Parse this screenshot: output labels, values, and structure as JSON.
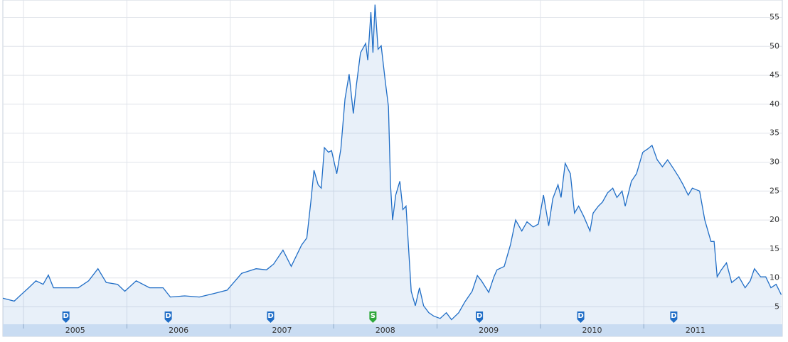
{
  "chart_data": {
    "type": "line",
    "x": [
      2004.8,
      2004.91,
      2004.97,
      2005.05,
      2005.12,
      2005.19,
      2005.24,
      2005.29,
      2005.39,
      2005.53,
      2005.63,
      2005.72,
      2005.8,
      2005.91,
      2005.98,
      2006.09,
      2006.22,
      2006.35,
      2006.42,
      2006.56,
      2006.7,
      2006.84,
      2006.97,
      2007.11,
      2007.25,
      2007.35,
      2007.42,
      2007.51,
      2007.59,
      2007.69,
      2007.74,
      2007.78,
      2007.81,
      2007.85,
      2007.88,
      2007.91,
      2007.95,
      2007.98,
      2008.03,
      2008.07,
      2008.11,
      2008.15,
      2008.19,
      2008.22,
      2008.26,
      2008.31,
      2008.33,
      2008.36,
      2008.38,
      2008.4,
      2008.43,
      2008.46,
      2008.5,
      2008.53,
      2008.55,
      2008.57,
      2008.6,
      2008.64,
      2008.67,
      2008.7,
      2008.75,
      2008.79,
      2008.83,
      2008.87,
      2008.92,
      2008.97,
      2009.03,
      2009.09,
      2009.14,
      2009.21,
      2009.27,
      2009.34,
      2009.39,
      2009.43,
      2009.5,
      2009.55,
      2009.58,
      2009.65,
      2009.71,
      2009.76,
      2009.82,
      2009.87,
      2009.93,
      2009.98,
      2010.03,
      2010.08,
      2010.12,
      2010.17,
      2010.2,
      2010.24,
      2010.29,
      2010.33,
      2010.37,
      2010.42,
      2010.48,
      2010.51,
      2010.56,
      2010.6,
      2010.65,
      2010.7,
      2010.74,
      2010.79,
      2010.82,
      2010.88,
      2010.93,
      2010.99,
      2011.04,
      2011.08,
      2011.13,
      2011.18,
      2011.23,
      2011.29,
      2011.34,
      2011.38,
      2011.43,
      2011.47,
      2011.54,
      2011.59,
      2011.65,
      2011.68,
      2011.71,
      2011.75,
      2011.8,
      2011.85,
      2011.92,
      2011.98,
      2012.03,
      2012.07,
      2012.13,
      2012.18,
      2012.23,
      2012.28,
      2012.33
    ],
    "series": [
      {
        "color": "#1f6dc6",
        "values": [
          6.5,
          6,
          7,
          8.3,
          9.5,
          8.9,
          10.5,
          8.3,
          8.3,
          8.3,
          9.5,
          11.6,
          9.2,
          8.9,
          7.7,
          9.5,
          8.3,
          8.3,
          6.7,
          6.9,
          6.7,
          7.3,
          7.9,
          10.8,
          11.6,
          11.4,
          12.4,
          14.8,
          12,
          15.7,
          16.9,
          23.3,
          28.6,
          26.1,
          25.5,
          32.5,
          31.7,
          32,
          28,
          32.3,
          40.9,
          45.2,
          38.4,
          43.3,
          48.9,
          50.5,
          47.6,
          55.9,
          48.9,
          57.2,
          49.5,
          50.1,
          43.9,
          39.6,
          26.1,
          20,
          24.3,
          26.7,
          21.8,
          22.4,
          7.7,
          5.2,
          8.3,
          5.2,
          4,
          3.4,
          3,
          4,
          2.8,
          4,
          5.9,
          7.7,
          10.4,
          9.5,
          7.5,
          10.2,
          11.4,
          12,
          15.7,
          20,
          18.1,
          19.7,
          18.8,
          19.3,
          24.3,
          19,
          23.7,
          26.1,
          23.9,
          29.8,
          28,
          21.2,
          22.4,
          20.6,
          18.1,
          21.2,
          22.4,
          23.1,
          24.7,
          25.5,
          23.9,
          25,
          22.4,
          26.7,
          28,
          31.7,
          32.3,
          32.9,
          30.4,
          29.2,
          30.4,
          28.8,
          27.4,
          26.1,
          24.3,
          25.5,
          25,
          20,
          16.3,
          16.3,
          10.2,
          11.4,
          12.6,
          9.2,
          10.2,
          8.3,
          9.5,
          11.6,
          10.2,
          10.2,
          8.3,
          8.9,
          7.1
        ]
      }
    ],
    "xlim": [
      2004.8,
      2012.34
    ],
    "xticks": [
      {
        "value": 2005,
        "label": "2005"
      },
      {
        "value": 2006,
        "label": "2006"
      },
      {
        "value": 2007,
        "label": "2007"
      },
      {
        "value": 2008,
        "label": "2008"
      },
      {
        "value": 2009,
        "label": "2009"
      },
      {
        "value": 2010,
        "label": "2010"
      },
      {
        "value": 2011,
        "label": "2011"
      }
    ],
    "ylim": [
      2,
      58
    ],
    "yticks": [
      5,
      10,
      15,
      20,
      25,
      30,
      35,
      40,
      45,
      50,
      55
    ],
    "grid": true,
    "flags": [
      {
        "label": "D",
        "x": 2005.41,
        "color": "#1f6dc6"
      },
      {
        "label": "D",
        "x": 2006.4,
        "color": "#1f6dc6"
      },
      {
        "label": "D",
        "x": 2007.39,
        "color": "#1f6dc6"
      },
      {
        "label": "S",
        "x": 2008.38,
        "color": "#2ea83a"
      },
      {
        "label": "D",
        "x": 2009.41,
        "color": "#1f6dc6"
      },
      {
        "label": "D",
        "x": 2010.39,
        "color": "#1f6dc6"
      },
      {
        "label": "D",
        "x": 2011.29,
        "color": "#1f6dc6"
      }
    ]
  }
}
